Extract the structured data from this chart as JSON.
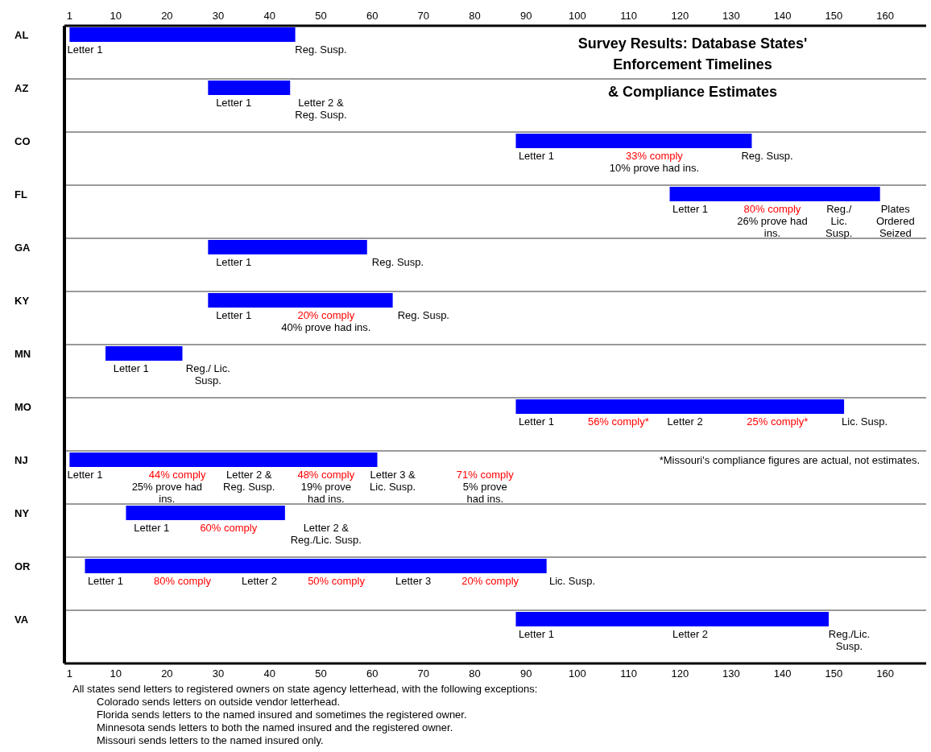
{
  "chart_data": {
    "type": "bar",
    "orientation": "horizontal",
    "title": "Survey Results:  Database States'\nEnforcement Timelines\n& Compliance Estimates",
    "categories": [
      "AL",
      "AZ",
      "CO",
      "FL",
      "GA",
      "KY",
      "MN",
      "MO",
      "NJ",
      "NY",
      "OR",
      "VA"
    ],
    "base": [
      1,
      28,
      88,
      118,
      28,
      28,
      8,
      88,
      1,
      12,
      4,
      88
    ],
    "values": [
      44,
      16,
      46,
      41,
      31,
      36,
      15,
      64,
      60,
      31,
      90,
      61
    ],
    "color": "#0000ff",
    "xlim": [
      0,
      168
    ],
    "xticks": [
      1,
      10,
      20,
      30,
      40,
      50,
      60,
      70,
      80,
      90,
      100,
      110,
      120,
      130,
      140,
      150,
      160
    ],
    "x2lim": [
      0,
      168
    ],
    "x2ticks": [
      1,
      10,
      20,
      30,
      40,
      50,
      60,
      70,
      80,
      90,
      100,
      110,
      120,
      130,
      140,
      150,
      160
    ],
    "grid": "y",
    "annotations": [
      "*Missouri's compliance figures are actual, not estimates.",
      "All states send letters to registered owners on state agency letterhead, with the following exceptions:",
      "Colorado sends letters on outside vendor letterhead.",
      "Florida sends letters to the named insured and sometimes the registered owner.",
      "Minnesota sends letters to both the named insured and the registered owner.",
      "Missouri sends letters to the named insured only.",
      "Letter 1",
      "Reg. Susp.",
      "Letter 1",
      "Letter 2 &\nReg. Susp.",
      "Letter 1",
      "33% comply",
      "10% prove had ins.",
      "Reg. Susp.",
      "Letter 1",
      "80% comply",
      "26% prove had\nins.",
      "Reg./\nLic.\nSusp.",
      "Plates\nOrdered\nSeized",
      "Letter 1",
      "Reg. Susp.",
      "Letter 1",
      "20% comply",
      "40% prove had ins.",
      "Reg. Susp.",
      "Letter 1",
      "Reg./ Lic.\nSusp.",
      "Letter 1",
      "56% comply*",
      "Letter 2",
      "25% comply*",
      "Lic. Susp.",
      "Letter 1",
      "44% comply",
      "25% prove had\nins.",
      "Letter 2 &\nReg. Susp.",
      "48% comply",
      "19% prove\nhad ins.",
      "Letter 3 &\nLic. Susp.",
      "71% comply",
      "5% prove\nhad ins.",
      "Letter 1",
      "60% comply",
      "Letter 2 &\nReg./Lic. Susp.",
      "Letter 1",
      "80% comply",
      "Letter 2",
      "50% comply",
      "Letter 3",
      "20% comply",
      "Lic. Susp.",
      "Letter 1",
      "Letter 2",
      "Reg./Lic.\nSusp."
    ]
  }
}
